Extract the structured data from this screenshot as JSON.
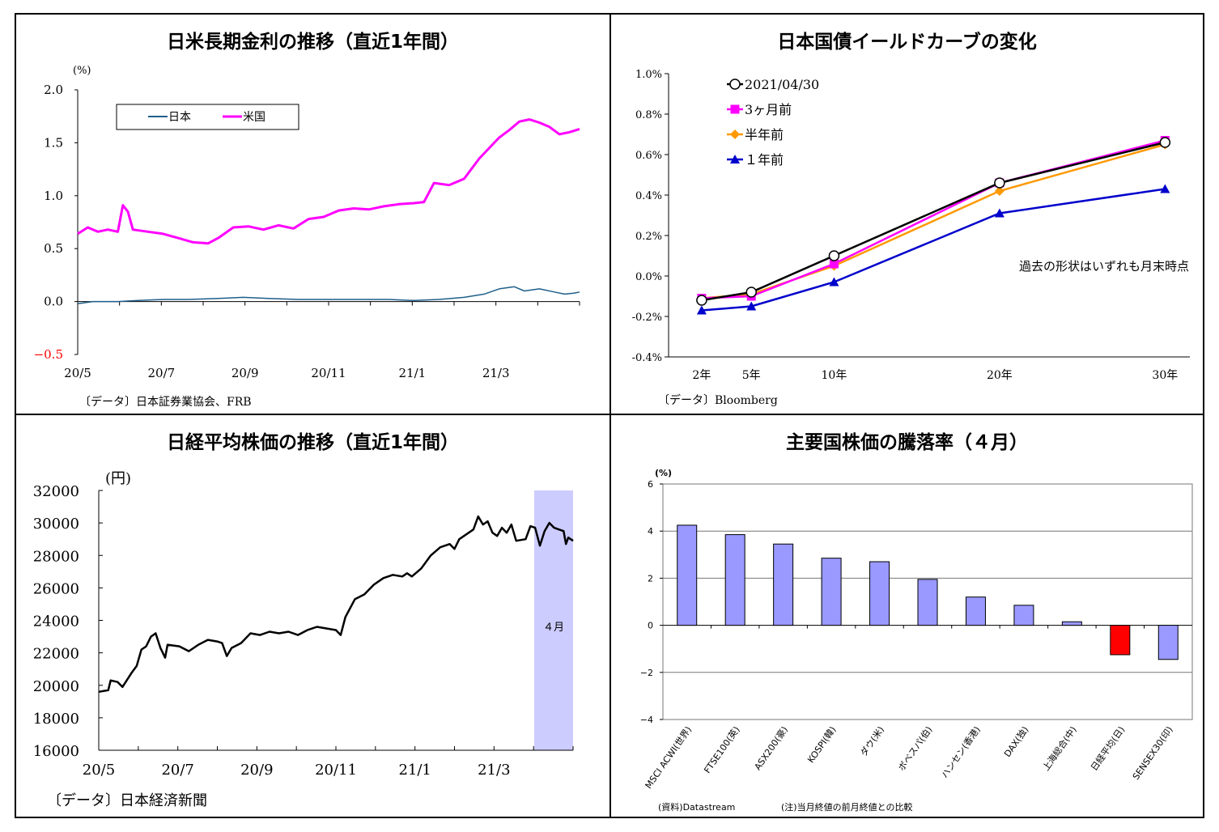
{
  "chart_data": [
    {
      "type": "line",
      "title": "日米長期金利の推移（直近1年間）",
      "ylabel": "(%)",
      "ylim": [
        -0.5,
        2.0
      ],
      "yticks": [
        "2.0",
        "1.5",
        "1.0",
        "0.5",
        "0.0",
        "−0.5"
      ],
      "xticks": [
        "20/5",
        "20/7",
        "20/9",
        "20/11",
        "21/1",
        "21/3"
      ],
      "legend": [
        "日本",
        "米国"
      ],
      "legend_position": "top-left",
      "source": "〔データ〕日本証券業協会、FRB",
      "colors": {
        "japan": "#1f5f8b",
        "us": "#ff00ff",
        "neg_tick": "#ff0000"
      },
      "series": [
        {
          "name": "日本",
          "points": [
            [
              0,
              -0.02
            ],
            [
              0.03,
              0.0
            ],
            [
              0.08,
              0.0
            ],
            [
              0.12,
              0.01
            ],
            [
              0.17,
              0.02
            ],
            [
              0.22,
              0.02
            ],
            [
              0.28,
              0.03
            ],
            [
              0.33,
              0.04
            ],
            [
              0.38,
              0.03
            ],
            [
              0.44,
              0.02
            ],
            [
              0.5,
              0.02
            ],
            [
              0.56,
              0.02
            ],
            [
              0.62,
              0.02
            ],
            [
              0.67,
              0.01
            ],
            [
              0.72,
              0.02
            ],
            [
              0.77,
              0.04
            ],
            [
              0.81,
              0.07
            ],
            [
              0.84,
              0.12
            ],
            [
              0.87,
              0.14
            ],
            [
              0.89,
              0.1
            ],
            [
              0.92,
              0.12
            ],
            [
              0.95,
              0.09
            ],
            [
              0.97,
              0.07
            ],
            [
              0.99,
              0.08
            ],
            [
              1.0,
              0.09
            ]
          ]
        },
        {
          "name": "米国",
          "points": [
            [
              0,
              0.64
            ],
            [
              0.02,
              0.7
            ],
            [
              0.04,
              0.66
            ],
            [
              0.06,
              0.68
            ],
            [
              0.08,
              0.66
            ],
            [
              0.09,
              0.91
            ],
            [
              0.1,
              0.85
            ],
            [
              0.11,
              0.68
            ],
            [
              0.14,
              0.66
            ],
            [
              0.17,
              0.64
            ],
            [
              0.2,
              0.6
            ],
            [
              0.23,
              0.56
            ],
            [
              0.26,
              0.55
            ],
            [
              0.28,
              0.6
            ],
            [
              0.31,
              0.7
            ],
            [
              0.34,
              0.71
            ],
            [
              0.37,
              0.68
            ],
            [
              0.4,
              0.72
            ],
            [
              0.43,
              0.69
            ],
            [
              0.46,
              0.78
            ],
            [
              0.49,
              0.8
            ],
            [
              0.52,
              0.86
            ],
            [
              0.55,
              0.88
            ],
            [
              0.58,
              0.87
            ],
            [
              0.61,
              0.9
            ],
            [
              0.64,
              0.92
            ],
            [
              0.67,
              0.93
            ],
            [
              0.69,
              0.94
            ],
            [
              0.71,
              1.12
            ],
            [
              0.74,
              1.1
            ],
            [
              0.77,
              1.16
            ],
            [
              0.8,
              1.35
            ],
            [
              0.82,
              1.45
            ],
            [
              0.84,
              1.55
            ],
            [
              0.86,
              1.62
            ],
            [
              0.88,
              1.7
            ],
            [
              0.9,
              1.72
            ],
            [
              0.92,
              1.69
            ],
            [
              0.94,
              1.65
            ],
            [
              0.96,
              1.58
            ],
            [
              0.98,
              1.6
            ],
            [
              1.0,
              1.63
            ]
          ]
        }
      ]
    },
    {
      "type": "line",
      "title": "日本国債イールドカーブの変化",
      "ylim": [
        -0.4,
        1.0
      ],
      "yticks": [
        "1.0%",
        "0.8%",
        "0.6%",
        "0.4%",
        "0.2%",
        "0.0%",
        "-0.2%",
        "-0.4%"
      ],
      "categories": [
        "2年",
        "5年",
        "10年",
        "20年",
        "30年"
      ],
      "x": [
        2,
        5,
        10,
        20,
        30
      ],
      "legend_position": "top-left",
      "annotation": "過去の形状はいずれも月末時点",
      "source": "〔データ〕Bloomberg",
      "series": [
        {
          "name": "2021/04/30",
          "color": "#000000",
          "marker": "circle",
          "values": [
            -0.12,
            -0.08,
            0.1,
            0.46,
            0.66
          ]
        },
        {
          "name": "3ヶ月前",
          "color": "#ff00ff",
          "marker": "square",
          "values": [
            -0.11,
            -0.1,
            0.06,
            0.46,
            0.67
          ]
        },
        {
          "name": "半年前",
          "color": "#ff9900",
          "marker": "diamond",
          "values": [
            -0.11,
            -0.09,
            0.05,
            0.42,
            0.65
          ]
        },
        {
          "name": "１年前",
          "color": "#0000cc",
          "marker": "triangle",
          "values": [
            -0.17,
            -0.15,
            -0.03,
            0.31,
            0.43
          ]
        }
      ]
    },
    {
      "type": "line",
      "title": "日経平均株価の推移（直近1年間）",
      "ylabel": "(円)",
      "ylim": [
        16000,
        32000
      ],
      "yticks": [
        "32000",
        "30000",
        "28000",
        "26000",
        "24000",
        "22000",
        "20000",
        "18000",
        "16000"
      ],
      "xticks": [
        "20/5",
        "20/7",
        "20/9",
        "20/11",
        "21/1",
        "21/3"
      ],
      "shaded_label": "４月",
      "source": "〔データ〕日本経済新聞",
      "colors": {
        "line": "#000000",
        "shade": "#ccccff"
      },
      "series": [
        {
          "name": "日経平均",
          "points": [
            [
              0,
              19600
            ],
            [
              0.02,
              19700
            ],
            [
              0.025,
              20300
            ],
            [
              0.04,
              20200
            ],
            [
              0.05,
              19900
            ],
            [
              0.07,
              20800
            ],
            [
              0.08,
              21200
            ],
            [
              0.09,
              22200
            ],
            [
              0.1,
              22400
            ],
            [
              0.11,
              23000
            ],
            [
              0.12,
              23200
            ],
            [
              0.13,
              22300
            ],
            [
              0.14,
              21700
            ],
            [
              0.145,
              22500
            ],
            [
              0.17,
              22400
            ],
            [
              0.19,
              22100
            ],
            [
              0.21,
              22500
            ],
            [
              0.23,
              22800
            ],
            [
              0.25,
              22700
            ],
            [
              0.26,
              22600
            ],
            [
              0.27,
              21800
            ],
            [
              0.28,
              22300
            ],
            [
              0.3,
              22600
            ],
            [
              0.32,
              23200
            ],
            [
              0.34,
              23100
            ],
            [
              0.36,
              23300
            ],
            [
              0.38,
              23200
            ],
            [
              0.4,
              23300
            ],
            [
              0.42,
              23100
            ],
            [
              0.44,
              23400
            ],
            [
              0.46,
              23600
            ],
            [
              0.48,
              23500
            ],
            [
              0.5,
              23400
            ],
            [
              0.51,
              23100
            ],
            [
              0.52,
              24200
            ],
            [
              0.54,
              25300
            ],
            [
              0.56,
              25600
            ],
            [
              0.58,
              26200
            ],
            [
              0.6,
              26600
            ],
            [
              0.62,
              26800
            ],
            [
              0.64,
              26700
            ],
            [
              0.65,
              26900
            ],
            [
              0.66,
              26700
            ],
            [
              0.68,
              27200
            ],
            [
              0.7,
              28000
            ],
            [
              0.72,
              28500
            ],
            [
              0.74,
              28700
            ],
            [
              0.75,
              28400
            ],
            [
              0.76,
              29000
            ],
            [
              0.78,
              29400
            ],
            [
              0.79,
              29600
            ],
            [
              0.8,
              30400
            ],
            [
              0.81,
              29900
            ],
            [
              0.82,
              30100
            ],
            [
              0.83,
              29400
            ],
            [
              0.84,
              29200
            ],
            [
              0.85,
              29700
            ],
            [
              0.86,
              29400
            ],
            [
              0.87,
              29900
            ],
            [
              0.88,
              28900
            ],
            [
              0.9,
              29000
            ],
            [
              0.91,
              29800
            ],
            [
              0.92,
              29700
            ],
            [
              0.93,
              28600
            ],
            [
              0.94,
              29500
            ],
            [
              0.95,
              30000
            ],
            [
              0.96,
              29700
            ],
            [
              0.97,
              29600
            ],
            [
              0.98,
              29500
            ],
            [
              0.985,
              28700
            ],
            [
              0.99,
              29100
            ],
            [
              1.0,
              28900
            ]
          ]
        }
      ]
    },
    {
      "type": "bar",
      "title": "主要国株価の騰落率（４月）",
      "ylabel": "(%)",
      "ylim": [
        -4,
        6
      ],
      "yticks": [
        "6",
        "4",
        "2",
        "0",
        "−2",
        "−4"
      ],
      "categories": [
        "MSCI ACWI(世界)",
        "FTSE100(英)",
        "ASX200(豪)",
        "KOSPI(韓)",
        "ダウ(米)",
        "ボベスパ(伯)",
        "ハンセン(香港)",
        "DAX(独)",
        "上海総合(中)",
        "日経平均(日)",
        "SENSEX30(印)"
      ],
      "values": [
        4.25,
        3.85,
        3.45,
        2.85,
        2.7,
        1.95,
        1.2,
        0.85,
        0.15,
        -1.25,
        -1.45
      ],
      "source": "(資料)Datastream",
      "note": "(注)当月終値の前月終値との比較",
      "colors": {
        "bar": "#9999ff",
        "highlight": "#ff0000",
        "highlight_index": 9
      }
    }
  ]
}
